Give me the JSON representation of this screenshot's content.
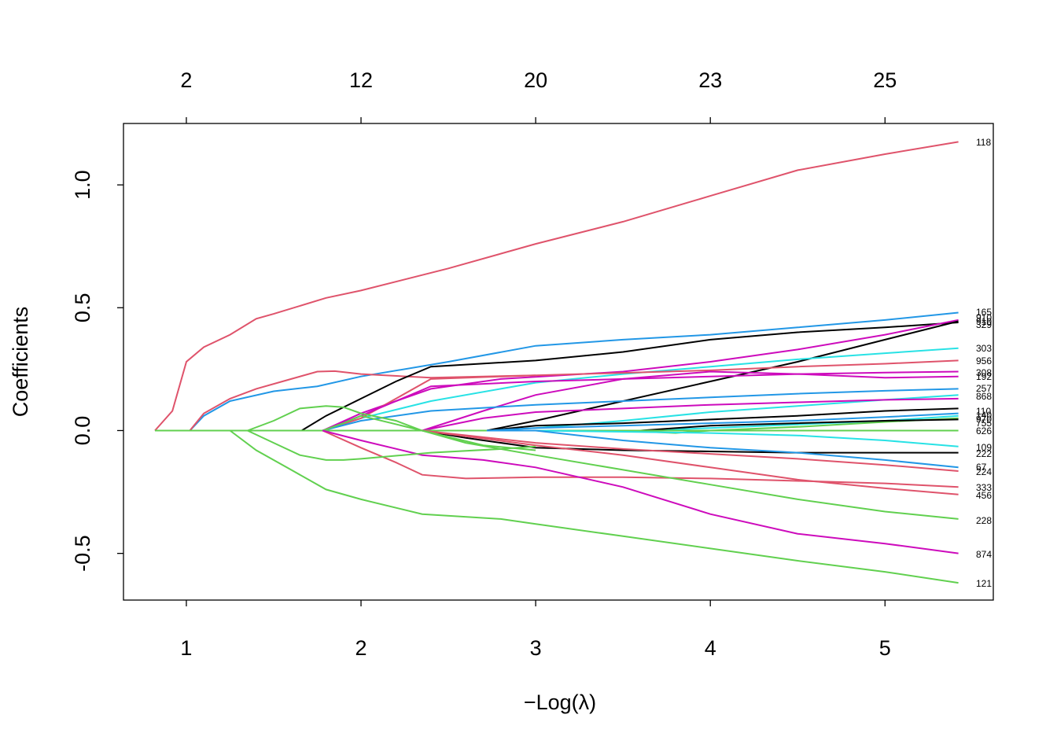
{
  "chart_data": {
    "type": "line",
    "xlabel": "Log(λ)",
    "xlabel_prefix": "−",
    "ylabel": "Coefficients",
    "xlim": [
      0.64,
      5.62
    ],
    "ylim": [
      -0.69,
      1.25
    ],
    "x_ticks": [
      1,
      2,
      3,
      4,
      5
    ],
    "y_ticks": [
      -0.5,
      0.0,
      0.5,
      1.0
    ],
    "y_tick_labels": [
      "-0.5",
      "0.0",
      "0.5",
      "1.0"
    ],
    "top_axis": {
      "positions": [
        1,
        2,
        3,
        4,
        5
      ],
      "labels": [
        "2",
        "12",
        "20",
        "23",
        "25"
      ]
    },
    "end_labels": [
      "118",
      "165",
      "910",
      "910",
      "329",
      "303",
      "956",
      "308",
      "192",
      "257",
      "868",
      "110",
      "140",
      "970",
      "755",
      "626",
      "109",
      "222",
      "67",
      "224",
      "333",
      "456",
      "228",
      "874",
      "121"
    ],
    "series": [
      {
        "color": "#DF536B",
        "label": "118",
        "points": [
          [
            0.82,
            0
          ],
          [
            0.92,
            0.08
          ],
          [
            1.0,
            0.28
          ],
          [
            1.1,
            0.34
          ],
          [
            1.25,
            0.39
          ],
          [
            1.4,
            0.455
          ],
          [
            1.5,
            0.475
          ],
          [
            1.8,
            0.54
          ],
          [
            2.0,
            0.57
          ],
          [
            2.5,
            0.66
          ],
          [
            3.0,
            0.76
          ],
          [
            3.5,
            0.85
          ],
          [
            4.0,
            0.955
          ],
          [
            4.5,
            1.06
          ],
          [
            5.0,
            1.125
          ],
          [
            5.42,
            1.175
          ]
        ]
      },
      {
        "color": "#2297E6",
        "label": "165",
        "points": [
          [
            1.02,
            0
          ],
          [
            1.1,
            0.06
          ],
          [
            1.25,
            0.12
          ],
          [
            1.5,
            0.16
          ],
          [
            1.75,
            0.18
          ],
          [
            2.0,
            0.22
          ],
          [
            2.5,
            0.28
          ],
          [
            3.0,
            0.345
          ],
          [
            3.5,
            0.37
          ],
          [
            4.0,
            0.39
          ],
          [
            4.5,
            0.42
          ],
          [
            5.0,
            0.45
          ],
          [
            5.42,
            0.48
          ]
        ]
      },
      {
        "color": "#DF536B",
        "label": "",
        "points": [
          [
            1.02,
            0
          ],
          [
            1.1,
            0.07
          ],
          [
            1.25,
            0.13
          ],
          [
            1.4,
            0.17
          ],
          [
            1.6,
            0.21
          ],
          [
            1.75,
            0.24
          ],
          [
            1.85,
            0.242
          ],
          [
            2.0,
            0.23
          ],
          [
            2.4,
            0.215
          ],
          [
            2.7,
            0.22
          ],
          [
            3.0,
            0.225
          ]
        ]
      },
      {
        "color": "#000000",
        "label": "910",
        "points": [
          [
            1.66,
            0
          ],
          [
            1.8,
            0.06
          ],
          [
            2.0,
            0.13
          ],
          [
            2.2,
            0.2
          ],
          [
            2.4,
            0.26
          ],
          [
            3.0,
            0.285
          ],
          [
            3.5,
            0.32
          ],
          [
            4.0,
            0.37
          ],
          [
            4.5,
            0.4
          ],
          [
            5.0,
            0.42
          ],
          [
            5.42,
            0.44
          ]
        ]
      },
      {
        "color": "#CD0BBC",
        "label": "910",
        "points": [
          [
            1.78,
            0
          ],
          [
            2.0,
            0.07
          ],
          [
            2.2,
            0.12
          ],
          [
            2.4,
            0.17
          ],
          [
            2.8,
            0.21
          ],
          [
            3.5,
            0.24
          ],
          [
            4.0,
            0.28
          ],
          [
            4.5,
            0.33
          ],
          [
            5.0,
            0.39
          ],
          [
            5.42,
            0.45
          ]
        ]
      },
      {
        "color": "#000000",
        "label": "329",
        "points": [
          [
            2.72,
            0
          ],
          [
            3.0,
            0.04
          ],
          [
            3.5,
            0.12
          ],
          [
            4.0,
            0.2
          ],
          [
            4.5,
            0.28
          ],
          [
            5.0,
            0.37
          ],
          [
            5.42,
            0.445
          ]
        ]
      },
      {
        "color": "#28E2E5",
        "label": "303",
        "points": [
          [
            1.78,
            0
          ],
          [
            2.0,
            0.05
          ],
          [
            2.4,
            0.12
          ],
          [
            3.0,
            0.195
          ],
          [
            3.5,
            0.23
          ],
          [
            4.0,
            0.26
          ],
          [
            4.5,
            0.29
          ],
          [
            5.0,
            0.315
          ],
          [
            5.42,
            0.335
          ]
        ]
      },
      {
        "color": "#DF536B",
        "label": "956",
        "points": [
          [
            1.78,
            0
          ],
          [
            2.0,
            0.05
          ],
          [
            2.4,
            0.21
          ],
          [
            3.0,
            0.225
          ],
          [
            3.5,
            0.235
          ],
          [
            4.0,
            0.245
          ],
          [
            4.5,
            0.26
          ],
          [
            5.0,
            0.272
          ],
          [
            5.42,
            0.285
          ]
        ]
      },
      {
        "color": "#CD0BBC",
        "label": "308",
        "points": [
          [
            1.78,
            0
          ],
          [
            2.0,
            0.06
          ],
          [
            2.4,
            0.18
          ],
          [
            3.0,
            0.2
          ],
          [
            3.5,
            0.21
          ],
          [
            4.0,
            0.22
          ],
          [
            4.5,
            0.23
          ],
          [
            5.0,
            0.236
          ],
          [
            5.42,
            0.24
          ]
        ]
      },
      {
        "color": "#CD0BBC",
        "label": "192",
        "points": [
          [
            2.35,
            0
          ],
          [
            2.7,
            0.08
          ],
          [
            3.0,
            0.145
          ],
          [
            3.5,
            0.21
          ],
          [
            4.0,
            0.24
          ],
          [
            4.5,
            0.23
          ],
          [
            5.0,
            0.215
          ],
          [
            5.42,
            0.22
          ]
        ]
      },
      {
        "color": "#2297E6",
        "label": "257",
        "points": [
          [
            1.78,
            0
          ],
          [
            2.0,
            0.04
          ],
          [
            2.4,
            0.08
          ],
          [
            3.0,
            0.105
          ],
          [
            3.5,
            0.12
          ],
          [
            4.0,
            0.135
          ],
          [
            4.5,
            0.15
          ],
          [
            5.0,
            0.162
          ],
          [
            5.42,
            0.17
          ]
        ]
      },
      {
        "color": "#28E2E5",
        "label": "868",
        "points": [
          [
            2.72,
            0
          ],
          [
            3.0,
            0.01
          ],
          [
            3.5,
            0.04
          ],
          [
            4.0,
            0.075
          ],
          [
            4.5,
            0.1
          ],
          [
            5.0,
            0.125
          ],
          [
            5.42,
            0.145
          ]
        ]
      },
      {
        "color": "#CD0BBC",
        "label": "110",
        "points": [
          [
            2.35,
            0
          ],
          [
            2.7,
            0.05
          ],
          [
            3.0,
            0.075
          ],
          [
            3.5,
            0.09
          ],
          [
            4.0,
            0.105
          ],
          [
            4.5,
            0.115
          ],
          [
            5.0,
            0.125
          ],
          [
            5.42,
            0.13
          ]
        ]
      },
      {
        "color": "#000000",
        "label": "140",
        "points": [
          [
            2.72,
            0
          ],
          [
            3.0,
            0.02
          ],
          [
            3.5,
            0.03
          ],
          [
            4.0,
            0.045
          ],
          [
            4.5,
            0.06
          ],
          [
            5.0,
            0.08
          ],
          [
            5.42,
            0.09
          ]
        ]
      },
      {
        "color": "#2297E6",
        "label": "970",
        "points": [
          [
            2.72,
            0
          ],
          [
            3.0,
            0.01
          ],
          [
            3.5,
            0.02
          ],
          [
            4.0,
            0.03
          ],
          [
            4.5,
            0.04
          ],
          [
            5.0,
            0.055
          ],
          [
            5.42,
            0.07
          ]
        ]
      },
      {
        "color": "#28E2E5",
        "label": "",
        "points": [
          [
            3.6,
            0
          ],
          [
            4.0,
            0.01
          ],
          [
            4.5,
            0.025
          ],
          [
            5.0,
            0.04
          ],
          [
            5.42,
            0.06
          ]
        ]
      },
      {
        "color": "#61D04F",
        "label": "755",
        "points": [
          [
            3.5,
            0
          ],
          [
            3.8,
            -0.01
          ],
          [
            4.0,
            0.0
          ],
          [
            4.5,
            0.015
          ],
          [
            5.0,
            0.035
          ],
          [
            5.42,
            0.05
          ]
        ]
      },
      {
        "color": "#000000",
        "label": "",
        "points": [
          [
            3.6,
            0
          ],
          [
            4.0,
            0.02
          ],
          [
            4.5,
            0.03
          ],
          [
            5.0,
            0.04
          ],
          [
            5.42,
            0.045
          ]
        ]
      },
      {
        "color": "#61D04F",
        "label": "626",
        "points": [
          [
            0.82,
            0
          ],
          [
            5.42,
            0
          ]
        ]
      },
      {
        "color": "#28E2E5",
        "label": "109",
        "points": [
          [
            2.72,
            0
          ],
          [
            3.0,
            0.0
          ],
          [
            3.5,
            -0.005
          ],
          [
            4.0,
            -0.01
          ],
          [
            4.5,
            -0.02
          ],
          [
            5.0,
            -0.04
          ],
          [
            5.42,
            -0.065
          ]
        ]
      },
      {
        "color": "#000000",
        "label": "222",
        "points": [
          [
            2.35,
            0
          ],
          [
            2.6,
            -0.03
          ],
          [
            3.0,
            -0.07
          ],
          [
            3.5,
            -0.08
          ],
          [
            4.0,
            -0.085
          ],
          [
            4.5,
            -0.09
          ],
          [
            5.0,
            -0.09
          ],
          [
            5.42,
            -0.09
          ]
        ]
      },
      {
        "color": "#2297E6",
        "label": "67",
        "points": [
          [
            2.72,
            0
          ],
          [
            3.0,
            0.0
          ],
          [
            3.5,
            -0.04
          ],
          [
            4.0,
            -0.07
          ],
          [
            4.5,
            -0.09
          ],
          [
            5.0,
            -0.12
          ],
          [
            5.42,
            -0.15
          ]
        ]
      },
      {
        "color": "#DF536B",
        "label": "224",
        "points": [
          [
            2.35,
            0
          ],
          [
            3.0,
            -0.05
          ],
          [
            3.5,
            -0.075
          ],
          [
            4.0,
            -0.095
          ],
          [
            4.5,
            -0.115
          ],
          [
            5.0,
            -0.14
          ],
          [
            5.42,
            -0.165
          ]
        ]
      },
      {
        "color": "#DF536B",
        "label": "333",
        "points": [
          [
            1.78,
            0
          ],
          [
            2.0,
            -0.07
          ],
          [
            2.2,
            -0.13
          ],
          [
            2.35,
            -0.18
          ],
          [
            2.6,
            -0.195
          ],
          [
            3.0,
            -0.19
          ],
          [
            3.5,
            -0.19
          ],
          [
            4.0,
            -0.195
          ],
          [
            4.5,
            -0.205
          ],
          [
            5.0,
            -0.215
          ],
          [
            5.42,
            -0.23
          ]
        ]
      },
      {
        "color": "#DF536B",
        "label": "456",
        "points": [
          [
            2.35,
            0
          ],
          [
            3.0,
            -0.06
          ],
          [
            3.5,
            -0.1
          ],
          [
            4.0,
            -0.15
          ],
          [
            4.5,
            -0.2
          ],
          [
            5.0,
            -0.235
          ],
          [
            5.42,
            -0.26
          ]
        ]
      },
      {
        "color": "#61D04F",
        "label": "228",
        "points": [
          [
            1.78,
            0
          ],
          [
            1.9,
            0.03
          ],
          [
            2.0,
            0.06
          ],
          [
            2.35,
            0.0
          ],
          [
            2.6,
            -0.05
          ],
          [
            3.0,
            -0.1
          ],
          [
            3.5,
            -0.16
          ],
          [
            4.0,
            -0.22
          ],
          [
            4.5,
            -0.28
          ],
          [
            5.0,
            -0.33
          ],
          [
            5.42,
            -0.36
          ]
        ]
      },
      {
        "color": "#CD0BBC",
        "label": "874",
        "points": [
          [
            1.78,
            0
          ],
          [
            2.0,
            -0.04
          ],
          [
            2.35,
            -0.1
          ],
          [
            2.7,
            -0.12
          ],
          [
            3.0,
            -0.15
          ],
          [
            3.5,
            -0.23
          ],
          [
            4.0,
            -0.34
          ],
          [
            4.5,
            -0.42
          ],
          [
            5.0,
            -0.46
          ],
          [
            5.42,
            -0.5
          ]
        ]
      },
      {
        "color": "#61D04F",
        "label": "121",
        "points": [
          [
            1.25,
            0
          ],
          [
            1.4,
            -0.08
          ],
          [
            1.6,
            -0.16
          ],
          [
            1.8,
            -0.24
          ],
          [
            2.0,
            -0.28
          ],
          [
            2.35,
            -0.34
          ],
          [
            2.8,
            -0.36
          ],
          [
            3.0,
            -0.38
          ],
          [
            3.5,
            -0.43
          ],
          [
            4.0,
            -0.48
          ],
          [
            4.5,
            -0.53
          ],
          [
            5.0,
            -0.575
          ],
          [
            5.42,
            -0.62
          ]
        ]
      },
      {
        "color": "#61D04F",
        "label": "",
        "points": [
          [
            1.35,
            0
          ],
          [
            1.5,
            0.04
          ],
          [
            1.65,
            0.09
          ],
          [
            1.8,
            0.1
          ],
          [
            1.9,
            0.095
          ],
          [
            2.0,
            0.07
          ],
          [
            2.2,
            0.04
          ],
          [
            2.35,
            0.0
          ],
          [
            2.7,
            -0.06
          ],
          [
            3.0,
            -0.08
          ]
        ]
      },
      {
        "color": "#61D04F",
        "label": "",
        "points": [
          [
            1.35,
            0
          ],
          [
            1.5,
            -0.05
          ],
          [
            1.65,
            -0.1
          ],
          [
            1.8,
            -0.12
          ],
          [
            1.9,
            -0.12
          ],
          [
            2.0,
            -0.115
          ],
          [
            2.4,
            -0.09
          ],
          [
            2.8,
            -0.075
          ],
          [
            3.0,
            -0.065
          ]
        ]
      }
    ]
  }
}
